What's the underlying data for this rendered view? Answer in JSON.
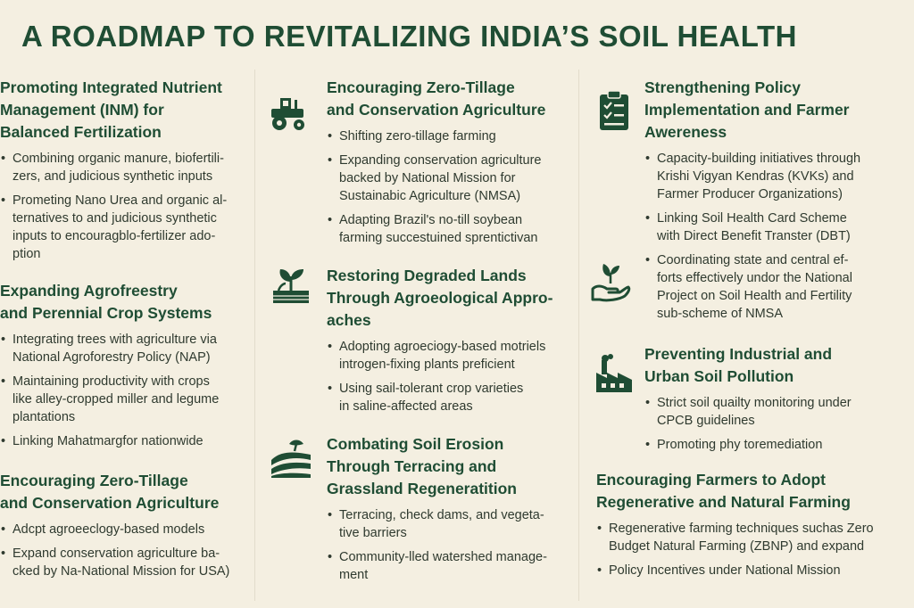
{
  "title": "A ROADMAP TO REVITALIZING INDIA’S SOIL HEALTH",
  "colors": {
    "background": "#f4efe1",
    "heading": "#1f4d34",
    "text": "#2f3a2f"
  },
  "col1": {
    "s1": {
      "heading": [
        "Promoting Integrated Nutrient",
        "Management (INM) for",
        "Balanced Fertilization"
      ],
      "items": [
        [
          "Combining organic manure, biofertili-",
          "zers, and judicious synthetic inputs"
        ],
        [
          "Prometing Nano Urea and organic al-",
          "ternatives to and judicious synthetic",
          "inputs to encouragblo-fertilizer ado-",
          "ption"
        ]
      ]
    },
    "s2": {
      "heading": [
        "Expanding Agrofreestry",
        "and Perennial Crop Systems"
      ],
      "items": [
        [
          "Integrating trees with agriculture via",
          "National Agroforestry Policy (NAP)"
        ],
        [
          "Maintaining productivity with crops",
          "like alley-cropped miller and legume",
          "plantations"
        ],
        [
          "Linking Mahatmargfor nationwide"
        ]
      ]
    },
    "s3": {
      "heading": [
        "Encouraging Zero-Tillage",
        "and Conservation Agriculture"
      ],
      "items": [
        [
          "Adcpt agroeeclogy-based models"
        ],
        [
          "Expand conservation agriculture ba-",
          "cked by Na-National Mission for USA)"
        ]
      ]
    }
  },
  "col2": {
    "s1": {
      "icon": "tractor-icon",
      "heading": [
        "Encouraging Zero-Tillage",
        "and Conservation Agriculture"
      ],
      "items": [
        [
          "Shifting zero-tillage farming"
        ],
        [
          "Expanding conservation agriculture",
          "backed by National Mission for",
          "Sustainabic Agriculture (NMSA)"
        ],
        [
          "Adapting Brazil's no-till soybean",
          "farming succestuined sprentictivan"
        ]
      ]
    },
    "s2": {
      "icon": "sprout-field-icon",
      "heading": [
        "Restoring Degraded Lands",
        "Through Agroeological Appro-",
        "aches"
      ],
      "items": [
        [
          "Adopting agroeciogy-based motriels",
          "introgen-fixing plants preficient"
        ],
        [
          "Using sail-tolerant crop varieties",
          "in saline-affected areas"
        ]
      ]
    },
    "s3": {
      "icon": "terraced-hills-icon",
      "heading": [
        "Combating Soil Erosion",
        "Through Terracing and",
        "Grassland Regeneratition"
      ],
      "items": [
        [
          "Terracing, check dams, and vegeta-",
          "tive barriers"
        ],
        [
          "Community-lled watershed manage-",
          "ment"
        ]
      ]
    }
  },
  "col3": {
    "s1": {
      "icon": "clipboard-icon",
      "heading": [
        "Strengthening Policy",
        "Implementation and Farmer",
        "Awereness"
      ],
      "items": [
        [
          "Capacity-building initiatives through",
          "Krishi Vigyan Kendras (KVKs) and",
          "Farmer Producer Organizations)"
        ],
        [
          "Linking Soil Health Card Scheme",
          "with Direct Benefit Transter (DBT)"
        ],
        [
          "Coordinating state and central ef-",
          "forts effectively undor the National",
          "Project on Soil Health and Fertility",
          "sub-scheme of NMSA"
        ]
      ]
    },
    "s1b": {
      "icon": "hand-sprout-icon"
    },
    "s2": {
      "icon": "factory-icon",
      "heading": [
        "Preventing Industrial and",
        "Urban Soil Pollution"
      ],
      "items": [
        [
          "Strict soil quailty monitoring under",
          "CPCB guidelines"
        ],
        [
          "Promoting phy toremediation"
        ]
      ]
    },
    "s3": {
      "heading": [
        "Encouraging Farmers to Adopt",
        "Regenerative and Natural Farming"
      ],
      "items": [
        [
          "Regenerative farming techniques suchas Zero",
          "Budget Natural Farming (ZBNP) and expand"
        ],
        [
          "Policy Incentives under National Mission"
        ]
      ]
    }
  }
}
